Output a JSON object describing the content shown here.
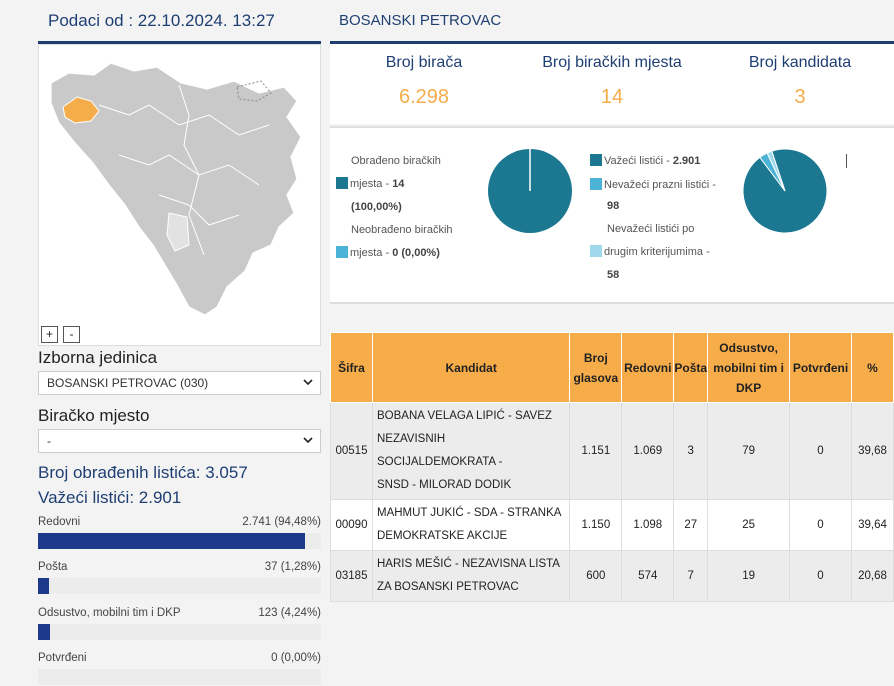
{
  "date_header": "Podaci od : 22.10.2024. 13:27",
  "map": {
    "zoom_in": "+",
    "zoom_out": "-"
  },
  "filters": {
    "unit_label": "Izborna jedinica",
    "unit_value": "BOSANSKI PETROVAC (030)",
    "station_label": "Biračko mjesto",
    "station_value": "-"
  },
  "stats": {
    "processed": "Broj obrađenih listića: 3.057",
    "valid": "Važeći listići: 2.901"
  },
  "breakdown": [
    {
      "label": "Redovni",
      "value": "2.741 (94,48%)",
      "percent": 94.48
    },
    {
      "label": "Pošta",
      "value": "37 (1,28%)",
      "percent": 1.28
    },
    {
      "label": "Odsustvo, mobilni tim i DKP",
      "value": "123 (4,24%)",
      "percent": 4.24
    },
    {
      "label": "Potvrđeni",
      "value": "0 (0,00%)",
      "percent": 0
    }
  ],
  "title": "BOSANSKI PETROVAC",
  "kpis": [
    {
      "label": "Broj birača",
      "value": "6.298"
    },
    {
      "label": "Broj biračkih mjesta",
      "value": "14"
    },
    {
      "label": "Broj kandidata",
      "value": "3"
    }
  ],
  "pie1": {
    "l1a": "Obrađeno biračkih",
    "l1b": "mjesta - ",
    "l1v": "14",
    "l1c": "(100,00%)",
    "l2a": "Neobrađeno biračkih",
    "l2b": "mjesta - ",
    "l2v": "0 (0,00%)",
    "share": 100.0
  },
  "pie2": {
    "l1a": "Važeći listići - ",
    "l1v": "2.901",
    "l2a": "Nevažeći prazni listići -",
    "l2v": "98",
    "l3a": "Nevažeći listići po",
    "l3b": "drugim kriterijumima -",
    "l3v": "58",
    "values": [
      2901,
      98,
      58
    ]
  },
  "colors": {
    "teal": "#1c7891",
    "light": "#4bb3d6",
    "pale": "#9fd8ea",
    "navy": "#1d3a8a",
    "orange": "#f6ac48"
  },
  "table": {
    "headers": [
      "Šifra",
      "Kandidat",
      "Broj glasova",
      "Redovni",
      "Pošta",
      "Odsustvo, mobilni tim i DKP",
      "Potvrđeni",
      "%"
    ],
    "rows": [
      {
        "code": "00515",
        "name1": "BOBANA VELAGA LIPIĆ - SAVEZ",
        "name2": "NEZAVISNIH SOCIJALDEMOKRATA -",
        "name3": "SNSD - MILORAD DODIK",
        "votes": "1.151",
        "reg": "1.069",
        "post": "3",
        "abs": "79",
        "conf": "0",
        "pct": "39,68"
      },
      {
        "code": "00090",
        "name1": "MAHMUT JUKIĆ - SDA - STRANKA",
        "name2": "DEMOKRATSKE AKCIJE",
        "name3": "",
        "votes": "1.150",
        "reg": "1.098",
        "post": "27",
        "abs": "25",
        "conf": "0",
        "pct": "39,64"
      },
      {
        "code": "03185",
        "name1": "HARIS MEŠIĆ - NEZAVISNA LISTA",
        "name2": "ZA BOSANSKI PETROVAC",
        "name3": "",
        "votes": "600",
        "reg": "574",
        "post": "7",
        "abs": "19",
        "conf": "0",
        "pct": "20,68"
      }
    ]
  }
}
